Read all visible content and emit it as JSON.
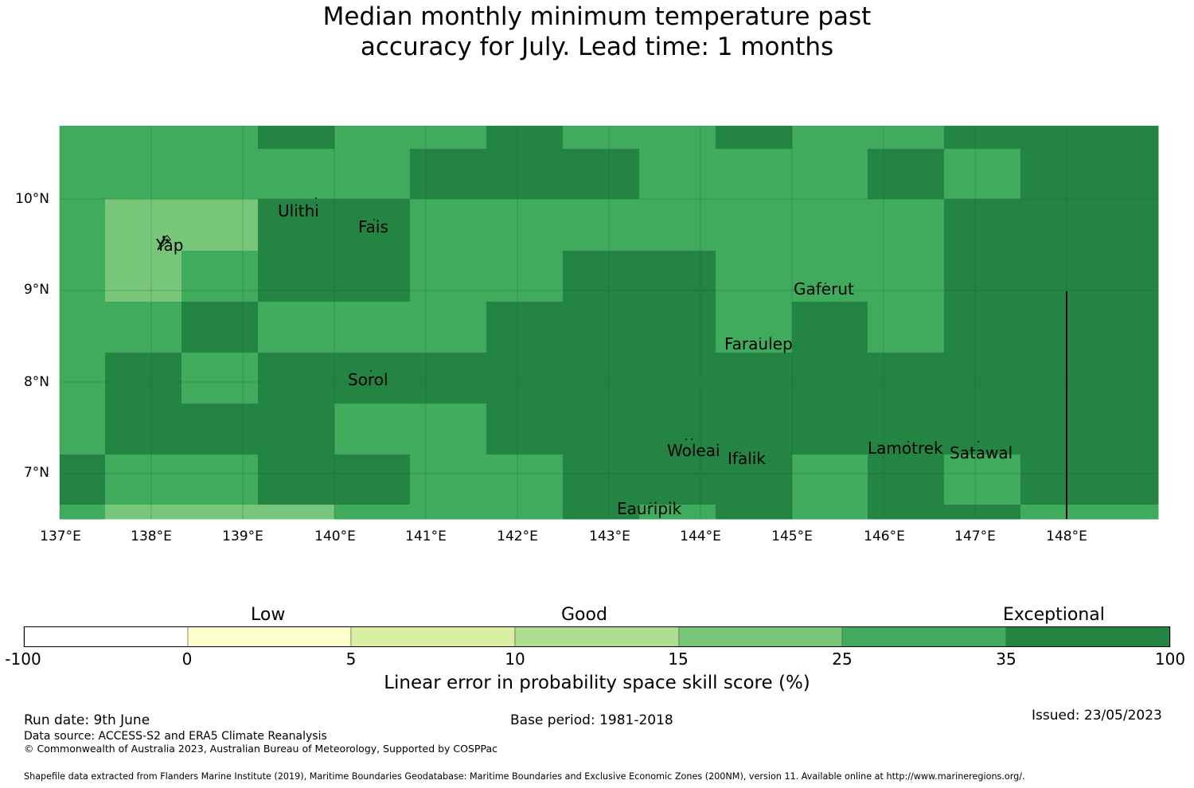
{
  "title": {
    "line1": "Median monthly minimum temperature past",
    "line2": "accuracy for July. Lead time: 1 months"
  },
  "map": {
    "lat_ticks": [
      "10°N",
      "9°N",
      "8°N",
      "7°N"
    ],
    "lon_ticks": [
      "137°E",
      "138°E",
      "139°E",
      "140°E",
      "141°E",
      "142°E",
      "143°E",
      "144°E",
      "145°E",
      "146°E",
      "147°E",
      "148°E"
    ],
    "places": [
      "Ulithi",
      "Fais",
      "Yap",
      "Gaferut",
      "Faraulep",
      "Sorol",
      "Woleai",
      "Ifalik",
      "Lamotrek",
      "Satawal",
      "Eauripik"
    ],
    "colors": {
      "c15_25": "#78c679",
      "c25_35": "#41ab5d",
      "c35_100": "#238443"
    }
  },
  "colorbar": {
    "categories": [
      "Low",
      "Good",
      "Exceptional"
    ],
    "ticks": [
      "-100",
      "0",
      "5",
      "10",
      "15",
      "25",
      "35",
      "100"
    ],
    "colors": [
      "#ffffff",
      "#ffffcc",
      "#d9f0a3",
      "#addd8e",
      "#78c679",
      "#41ab5d",
      "#238443"
    ],
    "label": "Linear error in probability space skill score (%)"
  },
  "footer": {
    "run_date": "Run date: 9th June",
    "base_period": "Base period: 1981-2018",
    "issued": "Issued: 23/05/2023",
    "data_source": "Data source: ACCESS-S2 and ERA5 Climate Reanalysis",
    "copyright": "© Commonwealth of Australia 2023, Australian Bureau of Meteorology, Supported by COSPPac",
    "shapefile": "Shapefile data extracted from Flanders Marine Institute (2019), Maritime Boundaries Geodatabase: Maritime Boundaries and Exclusive Economic Zones (200NM), version 11. Available online at http://www.marineregions.org/."
  }
}
